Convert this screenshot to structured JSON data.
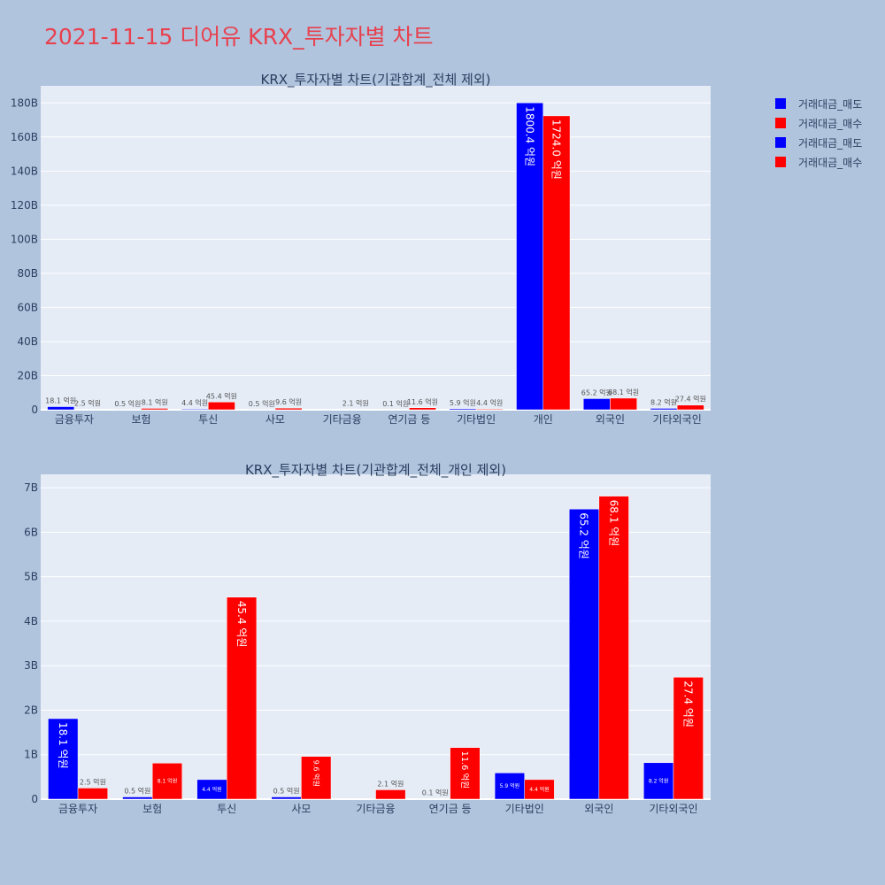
{
  "page_title": "2021-11-15 디어유 KRX_투자자별 차트",
  "colors": {
    "sell": "#0000ff",
    "buy": "#ff0000",
    "plot_bg": "#e5ecf6",
    "page_bg": "#b0c4de",
    "title": "#e8414e"
  },
  "legend": [
    {
      "label": "거래대금_매도",
      "color": "#0000ff"
    },
    {
      "label": "거래대금_매수",
      "color": "#ff0000"
    },
    {
      "label": "거래대금_매도",
      "color": "#0000ff"
    },
    {
      "label": "거래대금_매수",
      "color": "#ff0000"
    }
  ],
  "chart_data": [
    {
      "type": "bar",
      "title": "KRX_투자자별 차트(기관합계_전체 제외)",
      "categories": [
        "금융투자",
        "보험",
        "투신",
        "사모",
        "기타금융",
        "연기금 등",
        "기타법인",
        "개인",
        "외국인",
        "기타외국인"
      ],
      "series": [
        {
          "name": "거래대금_매도",
          "color": "#0000ff",
          "values": [
            1.81,
            0.05,
            0.44,
            0.05,
            0,
            0.01,
            0.59,
            180.04,
            6.52,
            0.82
          ],
          "labels": [
            "18.1 억원",
            "0.5 억원",
            "4.4 억원",
            "0.5 억원",
            "",
            "0.1 억원",
            "5.9 억원",
            "1800.4 억원",
            "65.2 억원",
            "8.2 억원"
          ]
        },
        {
          "name": "거래대금_매수",
          "color": "#ff0000",
          "values": [
            0.25,
            0.81,
            4.54,
            0.96,
            0.21,
            1.16,
            0.44,
            172.4,
            6.81,
            2.74
          ],
          "labels": [
            "2.5 억원",
            "8.1 억원",
            "45.4 억원",
            "9.6 억원",
            "2.1 억원",
            "11.6 억원",
            "4.4 억원",
            "1724.0 억원",
            "68.1 억원",
            "27.4 억원"
          ]
        }
      ],
      "y_unit": "B",
      "ylim": [
        0,
        190
      ],
      "yticks": [
        0,
        20,
        40,
        60,
        80,
        100,
        120,
        140,
        160,
        180
      ],
      "ytick_labels": [
        "0",
        "20B",
        "40B",
        "60B",
        "80B",
        "100B",
        "120B",
        "140B",
        "160B",
        "180B"
      ],
      "grid": true
    },
    {
      "type": "bar",
      "title": "KRX_투자자별 차트(기관합계_전체_개인 제외)",
      "categories": [
        "금융투자",
        "보험",
        "투신",
        "사모",
        "기타금융",
        "연기금 등",
        "기타법인",
        "외국인",
        "기타외국인"
      ],
      "series": [
        {
          "name": "거래대금_매도",
          "color": "#0000ff",
          "values": [
            1.81,
            0.05,
            0.44,
            0.05,
            0,
            0.01,
            0.59,
            6.52,
            0.82
          ],
          "labels": [
            "18.1 억원",
            "0.5 억원",
            "4.4 억원",
            "0.5 억원",
            "",
            "0.1 억원",
            "5.9 억원",
            "65.2 억원",
            "8.2 억원"
          ]
        },
        {
          "name": "거래대금_매수",
          "color": "#ff0000",
          "values": [
            0.25,
            0.81,
            4.54,
            0.96,
            0.21,
            1.16,
            0.44,
            6.81,
            2.74
          ],
          "labels": [
            "2.5 억원",
            "8.1 억원",
            "45.4 억원",
            "9.6 억원",
            "2.1 억원",
            "11.6 억원",
            "4.4 억원",
            "68.1 억원",
            "27.4 억원"
          ]
        }
      ],
      "y_unit": "B",
      "ylim": [
        0,
        7.3
      ],
      "yticks": [
        0,
        1,
        2,
        3,
        4,
        5,
        6,
        7
      ],
      "ytick_labels": [
        "0",
        "1B",
        "2B",
        "3B",
        "4B",
        "5B",
        "6B",
        "7B"
      ],
      "grid": true
    }
  ]
}
